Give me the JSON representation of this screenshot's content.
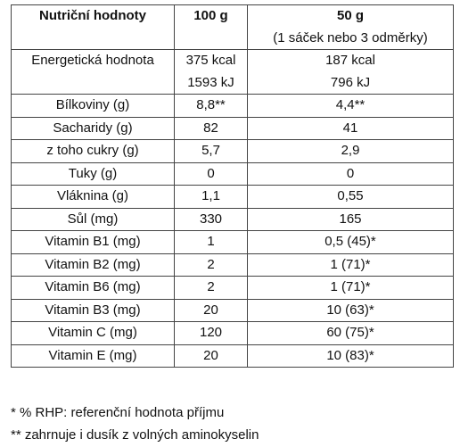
{
  "table": {
    "header": [
      "Nutriční hodnoty",
      "100 g",
      [
        "50 g",
        "(1 sáček nebo 3 odměrky)"
      ]
    ],
    "rows": [
      [
        "Energetická hodnota",
        [
          "375 kcal",
          "1593 kJ"
        ],
        [
          "187 kcal",
          "796 kJ"
        ]
      ],
      [
        "Bílkoviny (g)",
        "8,8**",
        "4,4**"
      ],
      [
        "Sacharidy (g)",
        "82",
        "41"
      ],
      [
        "z toho cukry (g)",
        "5,7",
        "2,9"
      ],
      [
        "Tuky (g)",
        "0",
        "0"
      ],
      [
        "Vláknina (g)",
        "1,1",
        "0,55"
      ],
      [
        "Sůl (mg)",
        "330",
        "165"
      ],
      [
        "Vitamin B1 (mg)",
        "1",
        "0,5 (45)*"
      ],
      [
        "Vitamin B2 (mg)",
        "2",
        "1 (71)*"
      ],
      [
        "Vitamin B6 (mg)",
        "2",
        "1 (71)*"
      ],
      [
        "Vitamin B3 (mg)",
        "20",
        "10 (63)*"
      ],
      [
        "Vitamin C (mg)",
        "120",
        "60 (75)*"
      ],
      [
        "Vitamin E (mg)",
        "20",
        "10 (83)*"
      ]
    ]
  },
  "footnotes": [
    "* % RHP: referenční hodnota příjmu",
    "** zahrnuje i dusík z volných aminokyselin"
  ]
}
